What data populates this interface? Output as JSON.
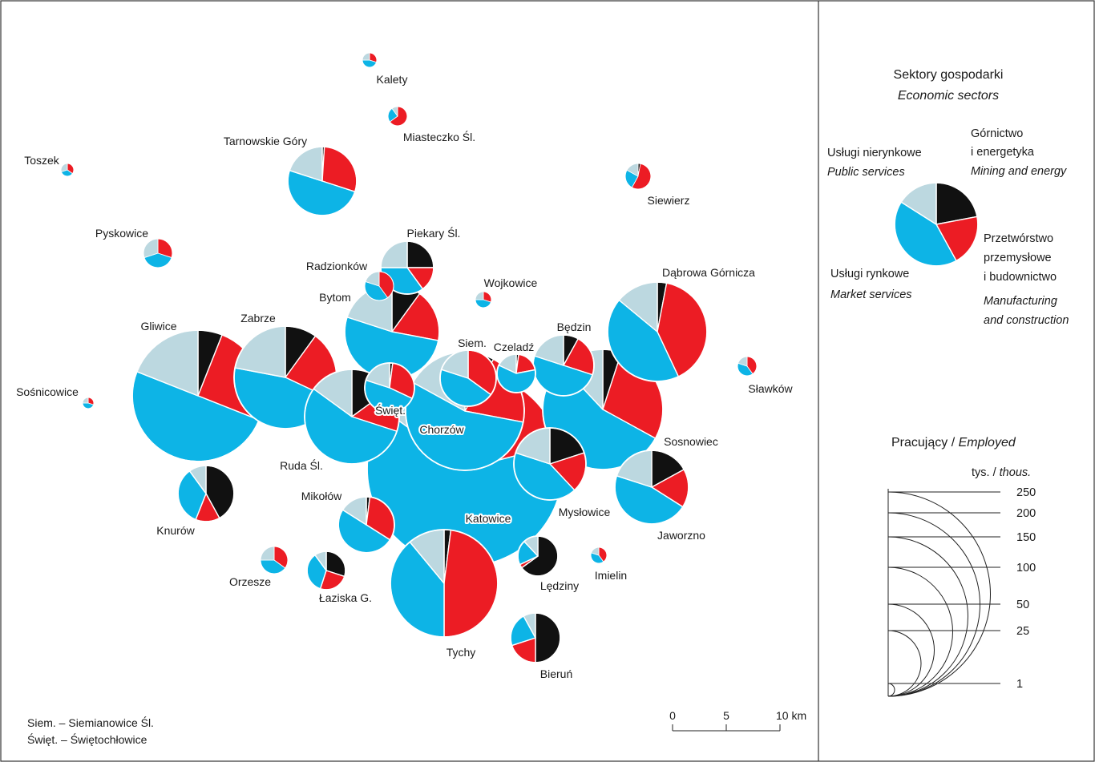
{
  "colors": {
    "mining": "#111111",
    "manufacturing": "#ec1c24",
    "market": "#0db4e6",
    "public": "#bcd8e0",
    "frame": "#333333"
  },
  "cities": [
    {
      "name": "Kalety",
      "s": [
        0,
        30,
        45,
        25
      ]
    },
    {
      "name": "Miasteczko Śl.",
      "s": [
        0,
        65,
        25,
        10
      ]
    },
    {
      "name": "Toszek",
      "s": [
        0,
        35,
        35,
        30
      ]
    },
    {
      "name": "Tarnowskie Góry",
      "s": [
        1,
        29,
        50,
        20
      ]
    },
    {
      "name": "Siewierz",
      "s": [
        3,
        55,
        25,
        17
      ]
    },
    {
      "name": "Pyskowice",
      "s": [
        0,
        30,
        40,
        30
      ]
    },
    {
      "name": "Piekary Śl.",
      "s": [
        25,
        15,
        35,
        25
      ]
    },
    {
      "name": "Radzionków",
      "s": [
        0,
        40,
        40,
        20
      ]
    },
    {
      "name": "Wojkowice",
      "s": [
        0,
        30,
        45,
        25
      ]
    },
    {
      "name": "Dąbrowa Górnicza",
      "s": [
        3,
        40,
        43,
        14
      ]
    },
    {
      "name": "Bytom",
      "s": [
        10,
        18,
        52,
        20
      ]
    },
    {
      "name": "Gliwice",
      "s": [
        6,
        25,
        50,
        19
      ]
    },
    {
      "name": "Zabrze",
      "s": [
        10,
        22,
        46,
        22
      ]
    },
    {
      "name": "Siem.",
      "s": [
        0,
        35,
        45,
        20
      ]
    },
    {
      "name": "Czeladź",
      "s": [
        2,
        20,
        60,
        18
      ]
    },
    {
      "name": "Będzin",
      "s": [
        8,
        22,
        50,
        20
      ]
    },
    {
      "name": "Sosnowiec",
      "s": [
        5,
        28,
        55,
        12
      ]
    },
    {
      "name": "Sławków",
      "s": [
        0,
        40,
        40,
        20
      ]
    },
    {
      "name": "Sośnicowice",
      "s": [
        0,
        30,
        45,
        25
      ]
    },
    {
      "name": "Ruda Śl.",
      "s": [
        15,
        15,
        55,
        15
      ]
    },
    {
      "name": "Święt.",
      "s": [
        2,
        30,
        48,
        20
      ]
    },
    {
      "name": "Chorzów",
      "s": [
        8,
        20,
        55,
        17
      ]
    },
    {
      "name": "Katowice",
      "s": [
        6,
        15,
        64,
        15
      ]
    },
    {
      "name": "Mysłowice",
      "s": [
        20,
        18,
        42,
        20
      ]
    },
    {
      "name": "Jaworzno",
      "s": [
        17,
        17,
        46,
        20
      ]
    },
    {
      "name": "Knurów",
      "s": [
        42,
        14,
        34,
        10
      ]
    },
    {
      "name": "Mikołów",
      "s": [
        2,
        32,
        50,
        16
      ]
    },
    {
      "name": "Orzesze",
      "s": [
        0,
        35,
        40,
        25
      ]
    },
    {
      "name": "Łaziska G.",
      "s": [
        30,
        25,
        35,
        10
      ]
    },
    {
      "name": "Tychy",
      "s": [
        2,
        48,
        39,
        11
      ]
    },
    {
      "name": "Lędziny",
      "s": [
        65,
        3,
        20,
        12
      ]
    },
    {
      "name": "Imielin",
      "s": [
        0,
        40,
        40,
        20
      ]
    },
    {
      "name": "Bieruń",
      "s": [
        50,
        20,
        22,
        8
      ]
    }
  ],
  "legend": {
    "title_pl": "Sektory gospodarki",
    "title_en": "Economic sectors",
    "mining_pl_1": "Górnictwo",
    "mining_pl_2": "i energetyka",
    "mining_en": "Mining and energy",
    "public_pl": "Usługi nierynkowe",
    "public_en": "Public services",
    "manufacturing_pl_1": "Przetwórstwo",
    "manufacturing_pl_2": "przemysłowe",
    "manufacturing_pl_3": "i budownictwo",
    "manufacturing_en_1": "Manufacturing",
    "manufacturing_en_2": "and construction",
    "market_pl": "Usługi rynkowe",
    "market_en": "Market services",
    "example_shares": [
      22,
      20,
      42,
      16
    ]
  },
  "size_legend": {
    "title_pl": "Pracujący / ",
    "title_en": "Employed",
    "unit_pl": "tys. / ",
    "unit_en": "thous.",
    "values": [
      "250",
      "200",
      "150",
      "100",
      "50",
      "25",
      "1"
    ]
  },
  "scale": {
    "ticks": [
      "0",
      "5",
      "10 km"
    ]
  },
  "footnotes": [
    "Siem. – Siemianowice Śl.",
    "Święt. – Świętochłowice"
  ]
}
